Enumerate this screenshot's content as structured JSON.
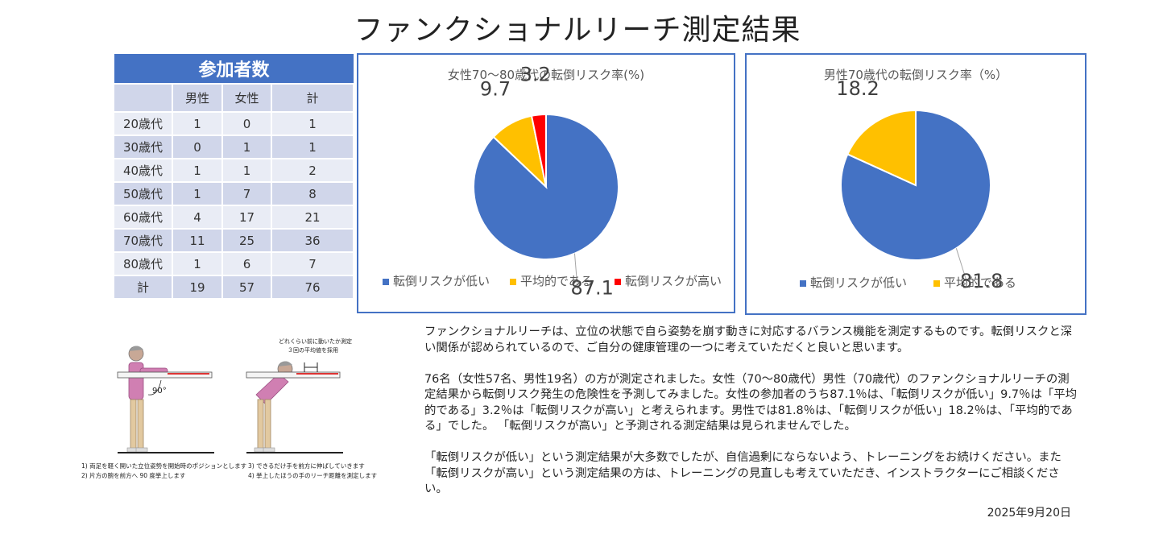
{
  "page_title": "ファンクショナルリーチ測定結果",
  "participants": {
    "caption": "参加者数",
    "columns": [
      "",
      "男性",
      "女性",
      "計"
    ],
    "rows": [
      [
        "20歳代",
        "1",
        "0",
        "1"
      ],
      [
        "30歳代",
        "0",
        "1",
        "1"
      ],
      [
        "40歳代",
        "1",
        "1",
        "2"
      ],
      [
        "50歳代",
        "1",
        "7",
        "8"
      ],
      [
        "60歳代",
        "4",
        "17",
        "21"
      ],
      [
        "70歳代",
        "11",
        "25",
        "36"
      ],
      [
        "80歳代",
        "1",
        "6",
        "7"
      ],
      [
        "計",
        "19",
        "57",
        "76"
      ]
    ]
  },
  "chart_data": [
    {
      "type": "pie",
      "title": "女性70〜80歳代の転倒リスク率(%)",
      "categories": [
        "転倒リスクが低い",
        "平均的である",
        "転倒リスクが高い"
      ],
      "values": [
        87.1,
        9.7,
        3.2
      ],
      "data_labels": [
        "87.1",
        "9.7",
        "3.2"
      ],
      "colors": [
        "#4472c4",
        "#ffc000",
        "#ff0000"
      ],
      "legend": "bottom"
    },
    {
      "type": "pie",
      "title": "男性70歳代の転倒リスク率（%）",
      "categories": [
        "転倒リスクが低い",
        "平均的である"
      ],
      "values": [
        81.8,
        18.2
      ],
      "data_labels": [
        "81.8",
        "18.2"
      ],
      "colors": [
        "#4472c4",
        "#ffc000"
      ],
      "legend": "bottom"
    }
  ],
  "figure": {
    "top_note_line1": "どれくらい前に動いたか測定",
    "top_note_line2": "３回の平均値を採用",
    "angle_label": "90°",
    "steps": [
      "1) 両足を軽く開いた立位姿勢を開始時のポジションとします",
      "2) 片方の腕を前方へ 90 度挙上します",
      "3) できるだけ手を前方に伸ばしていきます",
      "4) 挙上したほうの手のリーチ距離を測定します"
    ]
  },
  "description": {
    "para1": "ファンクショナルリーチは、立位の状態で自ら姿勢を崩す動きに対応するバランス機能を測定するものです。転倒リスクと深い関係が認められているので、ご自分の健康管理の一つに考えていただくと良いと思います。",
    "para2": "76名（女性57名、男性19名）の方が測定されました。女性（70〜80歳代）男性（70歳代）のファンクショナルリーチの測定結果から転倒リスク発生の危険性を予測してみました。女性の参加者のうち87.1％は、「転倒リスクが低い」9.7％は「平均的である」3.2％は「転倒リスクが高い」と考えられます。男性では81.8％は、「転倒リスクが低い」18.2％は、「平均的である」でした。 「転倒リスクが高い」と予測される測定結果は見られませんでした。",
    "para3": "「転倒リスクが低い」という測定結果が大多数でしたが、自信過剰にならないよう、トレーニングをお続けください。また「転倒リスクが高い」という測定結果の方は、トレーニングの見直しも考えていただき、インストラクターにご相談ください。",
    "date": "2025年9月20日"
  }
}
